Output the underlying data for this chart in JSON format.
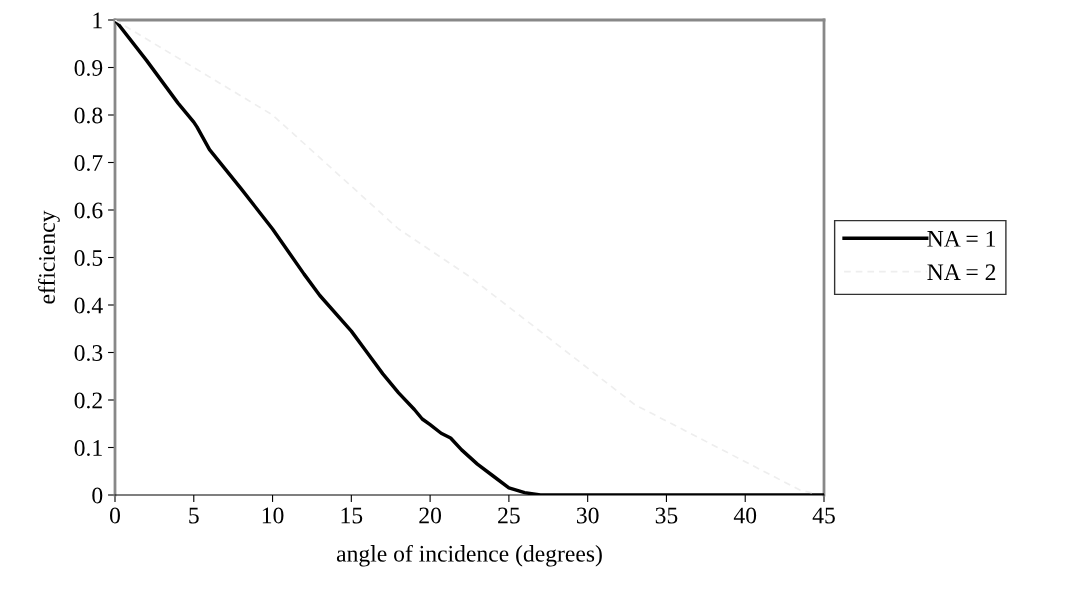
{
  "chart_data": {
    "type": "line",
    "xlabel": "angle of incidence (degrees)",
    "ylabel": "efficiency",
    "xlim": [
      0,
      45
    ],
    "xticks": [
      0,
      5,
      10,
      15,
      20,
      25,
      30,
      35,
      40,
      45
    ],
    "ylim": [
      0,
      1
    ],
    "yticks": [
      0,
      0.1,
      0.2,
      0.3,
      0.4,
      0.5,
      0.6,
      0.7,
      0.8,
      0.9,
      1
    ],
    "grid": false,
    "legend": "right",
    "series": [
      {
        "name": "NA = 1",
        "color": "#000000",
        "line_style": "solid",
        "x": [
          0,
          2,
          4,
          5,
          5.2,
          6,
          8,
          10,
          12,
          13,
          15,
          16,
          17,
          18,
          19,
          19.5,
          20,
          20.7,
          21.3,
          22,
          23,
          24,
          25,
          26,
          27,
          30,
          35,
          40,
          45
        ],
        "values": [
          1,
          0.915,
          0.825,
          0.785,
          0.775,
          0.727,
          0.645,
          0.56,
          0.465,
          0.42,
          0.345,
          0.3,
          0.255,
          0.215,
          0.18,
          0.16,
          0.148,
          0.13,
          0.12,
          0.095,
          0.065,
          0.04,
          0.015,
          0.005,
          0,
          0,
          0,
          0,
          0
        ]
      },
      {
        "name": "NA = 2",
        "color": "#eeeeee",
        "line_style": "dashed",
        "x": [
          0,
          10,
          18,
          22.5,
          33,
          40,
          43.5,
          44.5
        ],
        "values": [
          1,
          0.8,
          0.56,
          0.46,
          0.19,
          0.07,
          0.01,
          0.003
        ]
      }
    ]
  }
}
